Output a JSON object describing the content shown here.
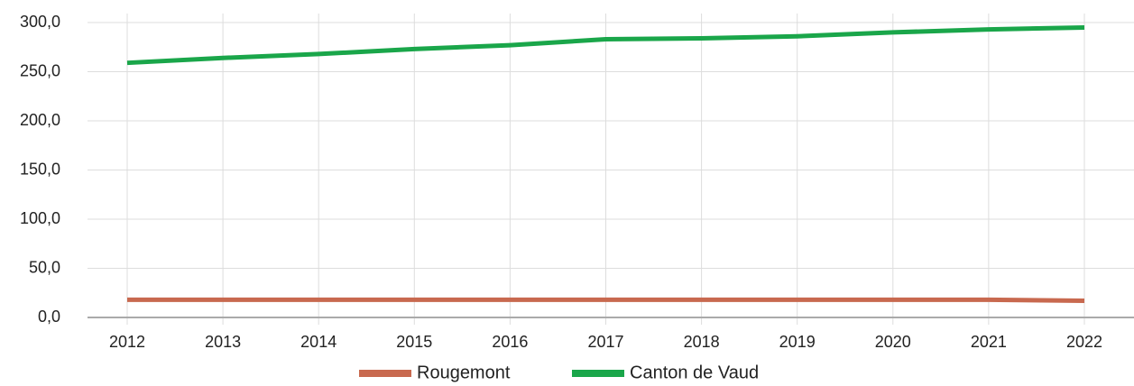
{
  "chart_data": {
    "type": "line",
    "x": [
      2012,
      2013,
      2014,
      2015,
      2016,
      2017,
      2018,
      2019,
      2020,
      2021,
      2022
    ],
    "series": [
      {
        "name": "Rougemont",
        "color": "#c8694f",
        "values": [
          18,
          18,
          18,
          18,
          18,
          18,
          18,
          18,
          18,
          18,
          17
        ]
      },
      {
        "name": "Canton de Vaud",
        "color": "#1aa64a",
        "values": [
          259,
          264,
          268,
          273,
          277,
          283,
          284,
          286,
          290,
          293,
          295
        ]
      }
    ],
    "ylim": [
      0,
      300
    ],
    "yticks": [
      {
        "value": 0,
        "label": "0,0"
      },
      {
        "value": 50,
        "label": "50,0"
      },
      {
        "value": 100,
        "label": "100,0"
      },
      {
        "value": 150,
        "label": "150,0"
      },
      {
        "value": 200,
        "label": "200,0"
      },
      {
        "value": 250,
        "label": "250,0"
      },
      {
        "value": 300,
        "label": "300,0"
      }
    ],
    "grid": true,
    "legend": "bottom"
  }
}
